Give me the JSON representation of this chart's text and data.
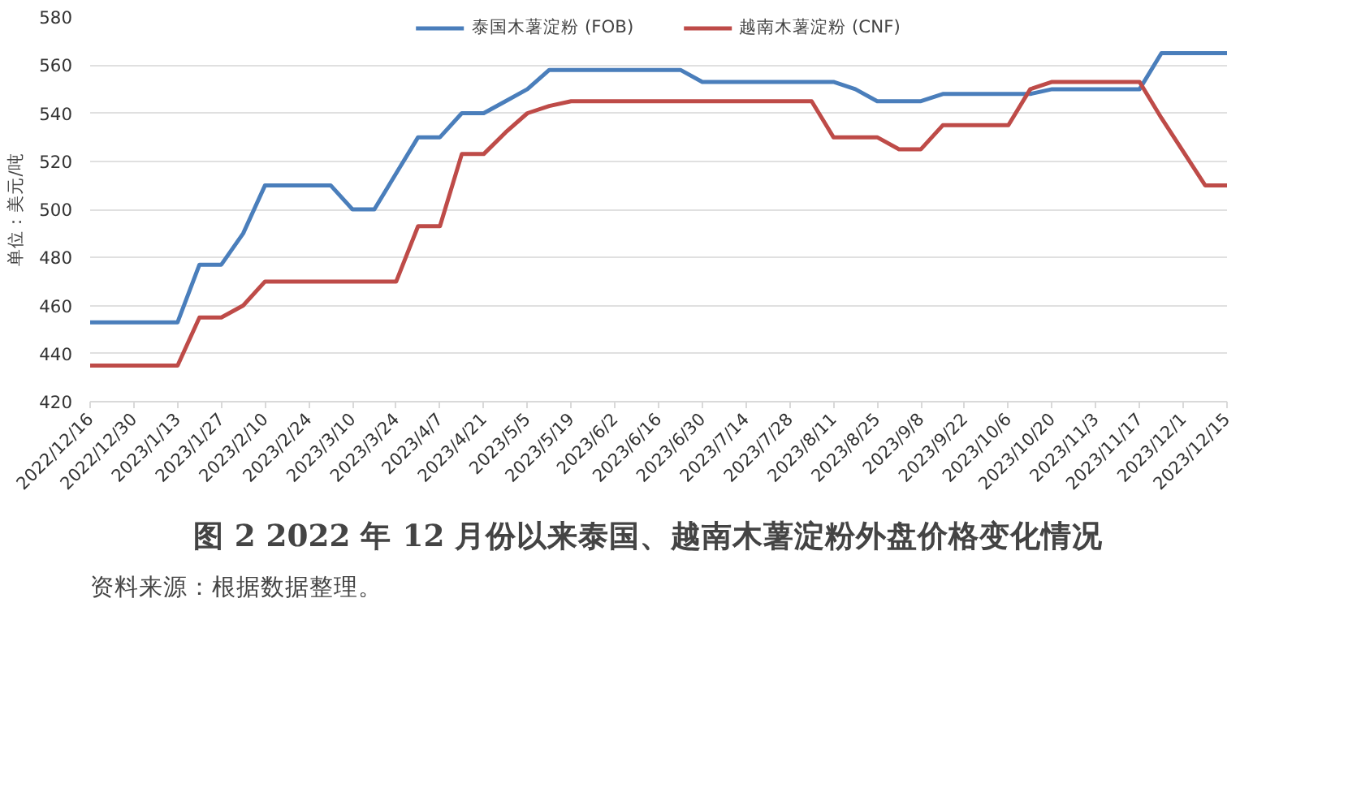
{
  "chart_data": {
    "type": "line",
    "title": "图 2   2022 年 12 月份以来泰国、越南木薯淀粉外盘价格变化情况",
    "ylabel": "单位：美元/吨",
    "categories": [
      "2022/12/16",
      null,
      "2022/12/30",
      null,
      "2023/1/13",
      null,
      "2023/1/27",
      null,
      "2023/2/10",
      null,
      "2023/2/24",
      null,
      "2023/3/10",
      null,
      "2023/3/24",
      null,
      "2023/4/7",
      null,
      "2023/4/21",
      null,
      "2023/5/5",
      null,
      "2023/5/19",
      null,
      "2023/6/2",
      null,
      "2023/6/16",
      null,
      "2023/6/30",
      null,
      "2023/7/14",
      null,
      "2023/7/28",
      null,
      "2023/8/11",
      null,
      "2023/8/25",
      null,
      "2023/9/8",
      null,
      "2023/9/22",
      null,
      "2023/10/6",
      null,
      "2023/10/20",
      null,
      "2023/11/3",
      null,
      "2023/11/17",
      null,
      "2023/12/1",
      null,
      "2023/12/15"
    ],
    "series": [
      {
        "name": "泰国木薯淀粉 (FOB)",
        "color": "#4a7ebb",
        "values": [
          453,
          453,
          453,
          453,
          453,
          477,
          477,
          490,
          510,
          510,
          510,
          510,
          500,
          500,
          515,
          530,
          530,
          540,
          540,
          545,
          550,
          558,
          558,
          558,
          558,
          558,
          558,
          558,
          553,
          553,
          553,
          553,
          553,
          553,
          553,
          550,
          545,
          545,
          545,
          548,
          548,
          548,
          548,
          548,
          550,
          550,
          550,
          550,
          550,
          565,
          565,
          565,
          565
        ]
      },
      {
        "name": "越南木薯淀粉 (CNF)",
        "color": "#be4b48",
        "values": [
          435,
          435,
          435,
          435,
          435,
          455,
          455,
          460,
          470,
          470,
          470,
          470,
          470,
          470,
          470,
          493,
          493,
          523,
          523,
          532,
          540,
          543,
          545,
          545,
          545,
          545,
          545,
          545,
          545,
          545,
          545,
          545,
          545,
          545,
          530,
          530,
          530,
          525,
          525,
          535,
          535,
          535,
          535,
          550,
          553,
          553,
          553,
          553,
          553,
          538,
          524,
          510,
          510
        ]
      }
    ],
    "ylim": [
      420,
      580
    ],
    "yticks": [
      420,
      440,
      460,
      480,
      500,
      520,
      540,
      560,
      580
    ],
    "grid": "y",
    "legend": "top",
    "marker": "none",
    "line_style": "solid",
    "annotations": [
      "资料来源：根据数据整理。"
    ]
  }
}
